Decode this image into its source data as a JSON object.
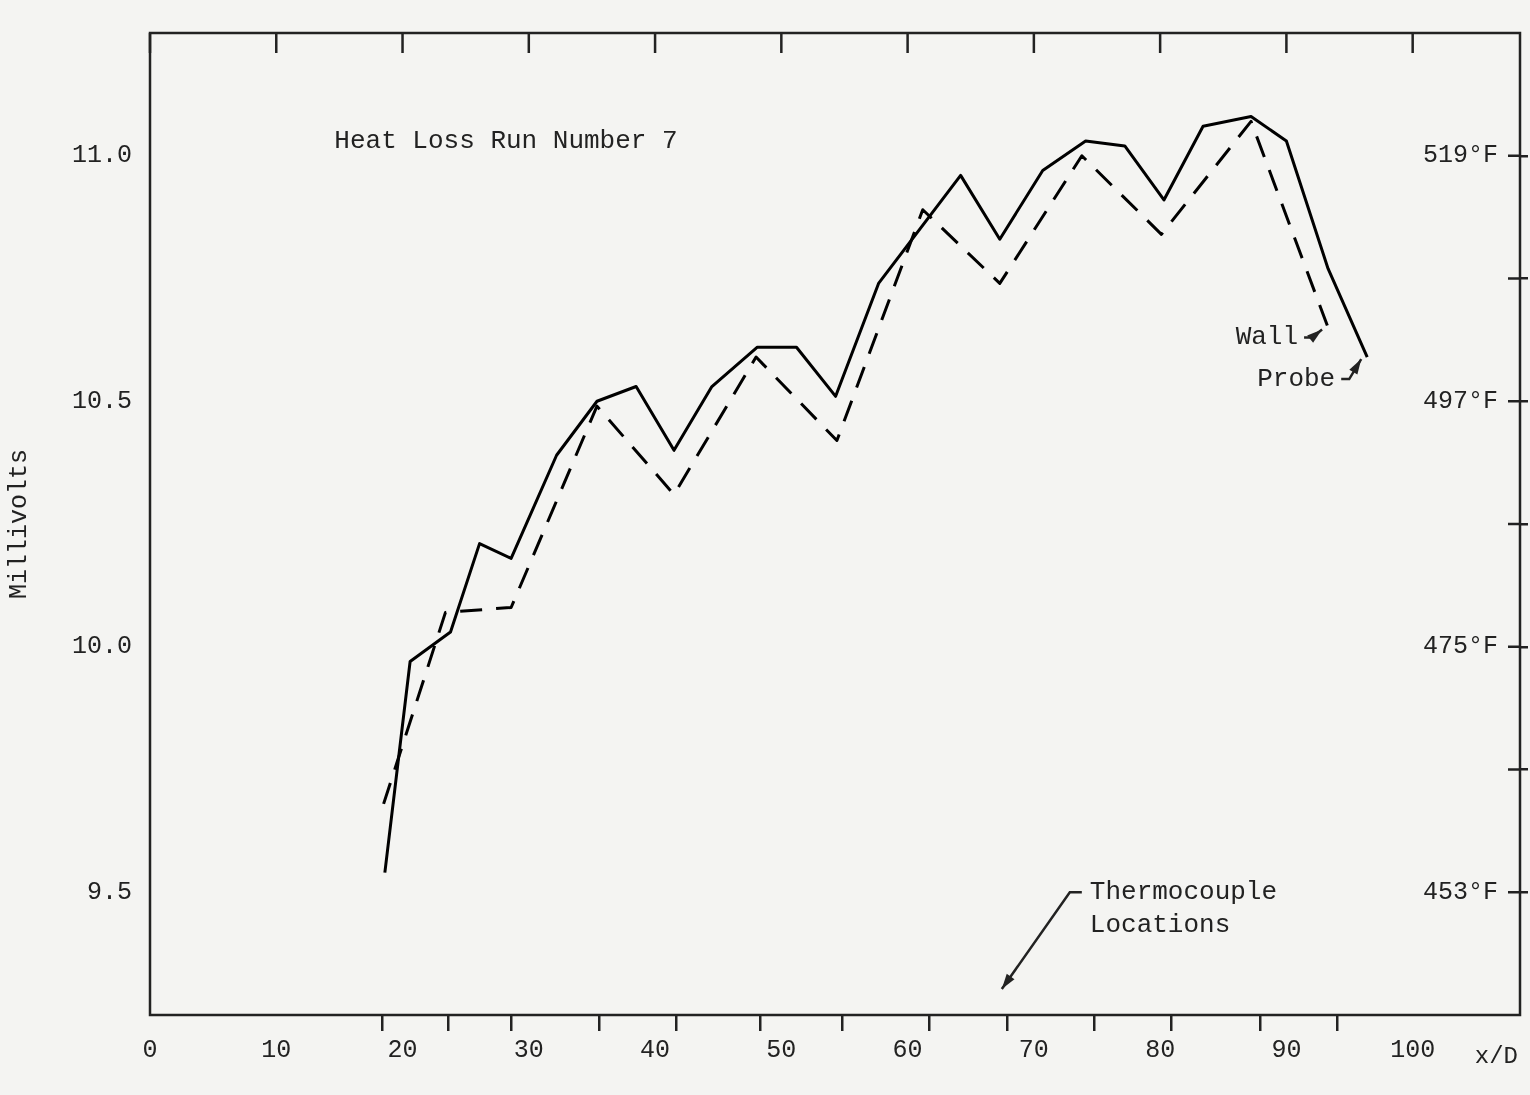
{
  "chart_data": {
    "type": "line",
    "title": "Heat Loss Run Number 7",
    "xlabel": "x/D",
    "ylabel": "Millivolts",
    "xlim": [
      0,
      108.5
    ],
    "ylim": [
      9.25,
      11.25
    ],
    "y2lim": [
      442,
      530
    ],
    "xticks": [
      0,
      10,
      20,
      30,
      40,
      50,
      60,
      70,
      80,
      90,
      100,
      {
        "value": 18.4,
        "label": null
      },
      {
        "value": 23.6,
        "label": null
      },
      {
        "value": 28.6,
        "label": null
      },
      {
        "value": 35.6,
        "label": null
      },
      {
        "value": 41.7,
        "label": null
      },
      {
        "value": 48.3,
        "label": null
      },
      {
        "value": 54.8,
        "label": null
      },
      {
        "value": 61.7,
        "label": null
      },
      {
        "value": 67.9,
        "label": null
      },
      {
        "value": 74.8,
        "label": null
      },
      {
        "value": 80.9,
        "label": null
      },
      {
        "value": 87.9,
        "label": null
      },
      {
        "value": 94.0,
        "label": null
      }
    ],
    "yticks": [
      9.5,
      {
        "value": 10,
        "label": "10.0"
      },
      10.5,
      {
        "value": 11,
        "label": "11.0"
      }
    ],
    "y2ticks": [
      {
        "value": 453,
        "label": "453°F"
      },
      {
        "value": 464,
        "label": null
      },
      {
        "value": 475,
        "label": "475°F"
      },
      {
        "value": 486,
        "label": null
      },
      {
        "value": 497,
        "label": "497°F"
      },
      {
        "value": 508,
        "label": null
      },
      {
        "value": 519,
        "label": "519°F"
      }
    ],
    "series": [
      {
        "name": "Wall",
        "color": "#000000",
        "line_style": "dashed",
        "x": [
          18.5,
          23.4,
          28.6,
          35.4,
          41.5,
          48.0,
          54.4,
          61.2,
          67.3,
          73.8,
          80.1,
          87.2,
          93.3
        ],
        "values": [
          9.68,
          10.07,
          10.08,
          10.49,
          10.31,
          10.59,
          10.42,
          10.89,
          10.74,
          11.0,
          10.84,
          11.07,
          10.65
        ]
      },
      {
        "name": "Probe",
        "color": "#000000",
        "line_style": "solid",
        "x": [
          18.6,
          20.6,
          23.8,
          26.1,
          28.6,
          32.2,
          35.4,
          38.5,
          41.5,
          44.5,
          48.1,
          51.2,
          54.3,
          57.7,
          64.2,
          67.3,
          70.7,
          74.1,
          77.2,
          80.3,
          83.4,
          87.2,
          90.0,
          93.3,
          96.4
        ],
        "values": [
          9.54,
          9.97,
          10.03,
          10.21,
          10.18,
          10.39,
          10.5,
          10.53,
          10.4,
          10.53,
          10.61,
          10.61,
          10.51,
          10.74,
          10.96,
          10.83,
          10.97,
          11.03,
          11.02,
          10.91,
          11.06,
          11.08,
          11.03,
          10.77,
          10.59
        ]
      }
    ],
    "annotations": [
      "Thermocouple Locations"
    ],
    "grid": false,
    "legend": false,
    "marker": "none"
  }
}
